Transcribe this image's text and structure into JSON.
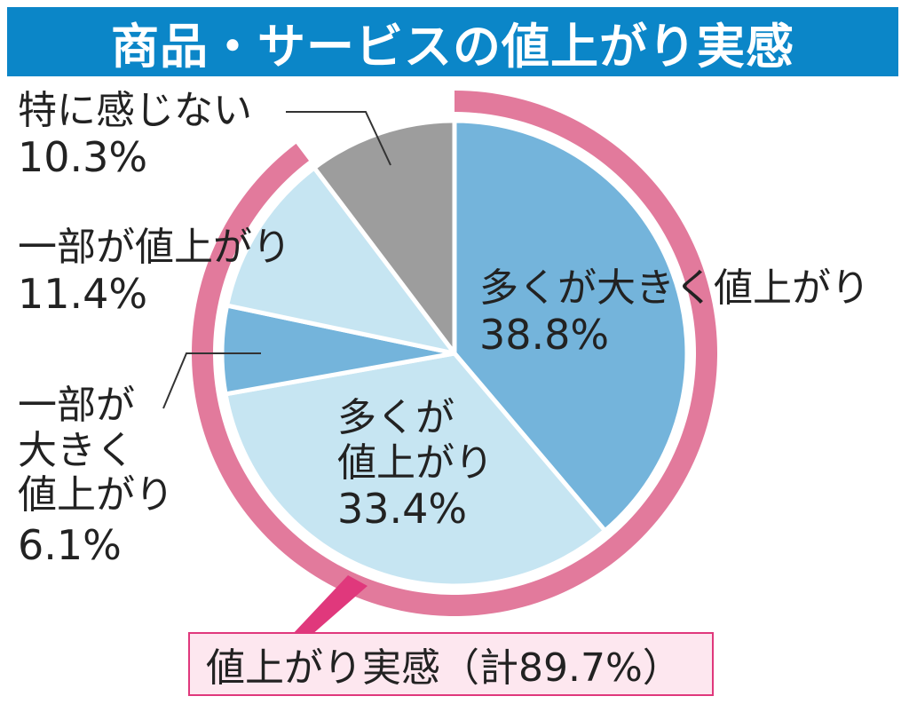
{
  "title": "商品・サービスの値上がり実感",
  "colors": {
    "title_bg": "#0b86c8",
    "ring": "#e27a9c",
    "slice_dark_blue": "#74b4db",
    "slice_light_blue": "#c6e5f2",
    "slice_gray": "#9d9d9d",
    "summary_border": "#e0387c",
    "summary_bg": "#fde7ef"
  },
  "chart_data": {
    "type": "pie",
    "slices": [
      {
        "label": "多くが大きく値上がり",
        "value": 38.8,
        "display": "38.8%",
        "color": "#74b4db"
      },
      {
        "label": "多くが値上がり",
        "value": 33.4,
        "display": "33.4%",
        "color": "#c6e5f2"
      },
      {
        "label": "一部が大きく値上がり",
        "value": 6.1,
        "display": "6.1%",
        "color": "#74b4db"
      },
      {
        "label": "一部が値上がり",
        "value": 11.4,
        "display": "11.4%",
        "color": "#c6e5f2"
      },
      {
        "label": "特に感じない",
        "value": 10.3,
        "display": "10.3%",
        "color": "#9d9d9d"
      }
    ],
    "start": "12 o'clock",
    "direction": "clockwise",
    "highlight_ring": {
      "label": "値上がり実感",
      "total": 89.7,
      "text": "値上がり実感（計89.7%）"
    }
  },
  "labels": {
    "s0_line1": "多くが大きく値上がり",
    "s1_line1": "多くが",
    "s1_line2": "値上がり",
    "s2_line1": "一部が",
    "s2_line2": "大きく",
    "s2_line3": "値上がり",
    "s3_line1": "一部が値上がり",
    "s4_line1": "特に感じない"
  }
}
